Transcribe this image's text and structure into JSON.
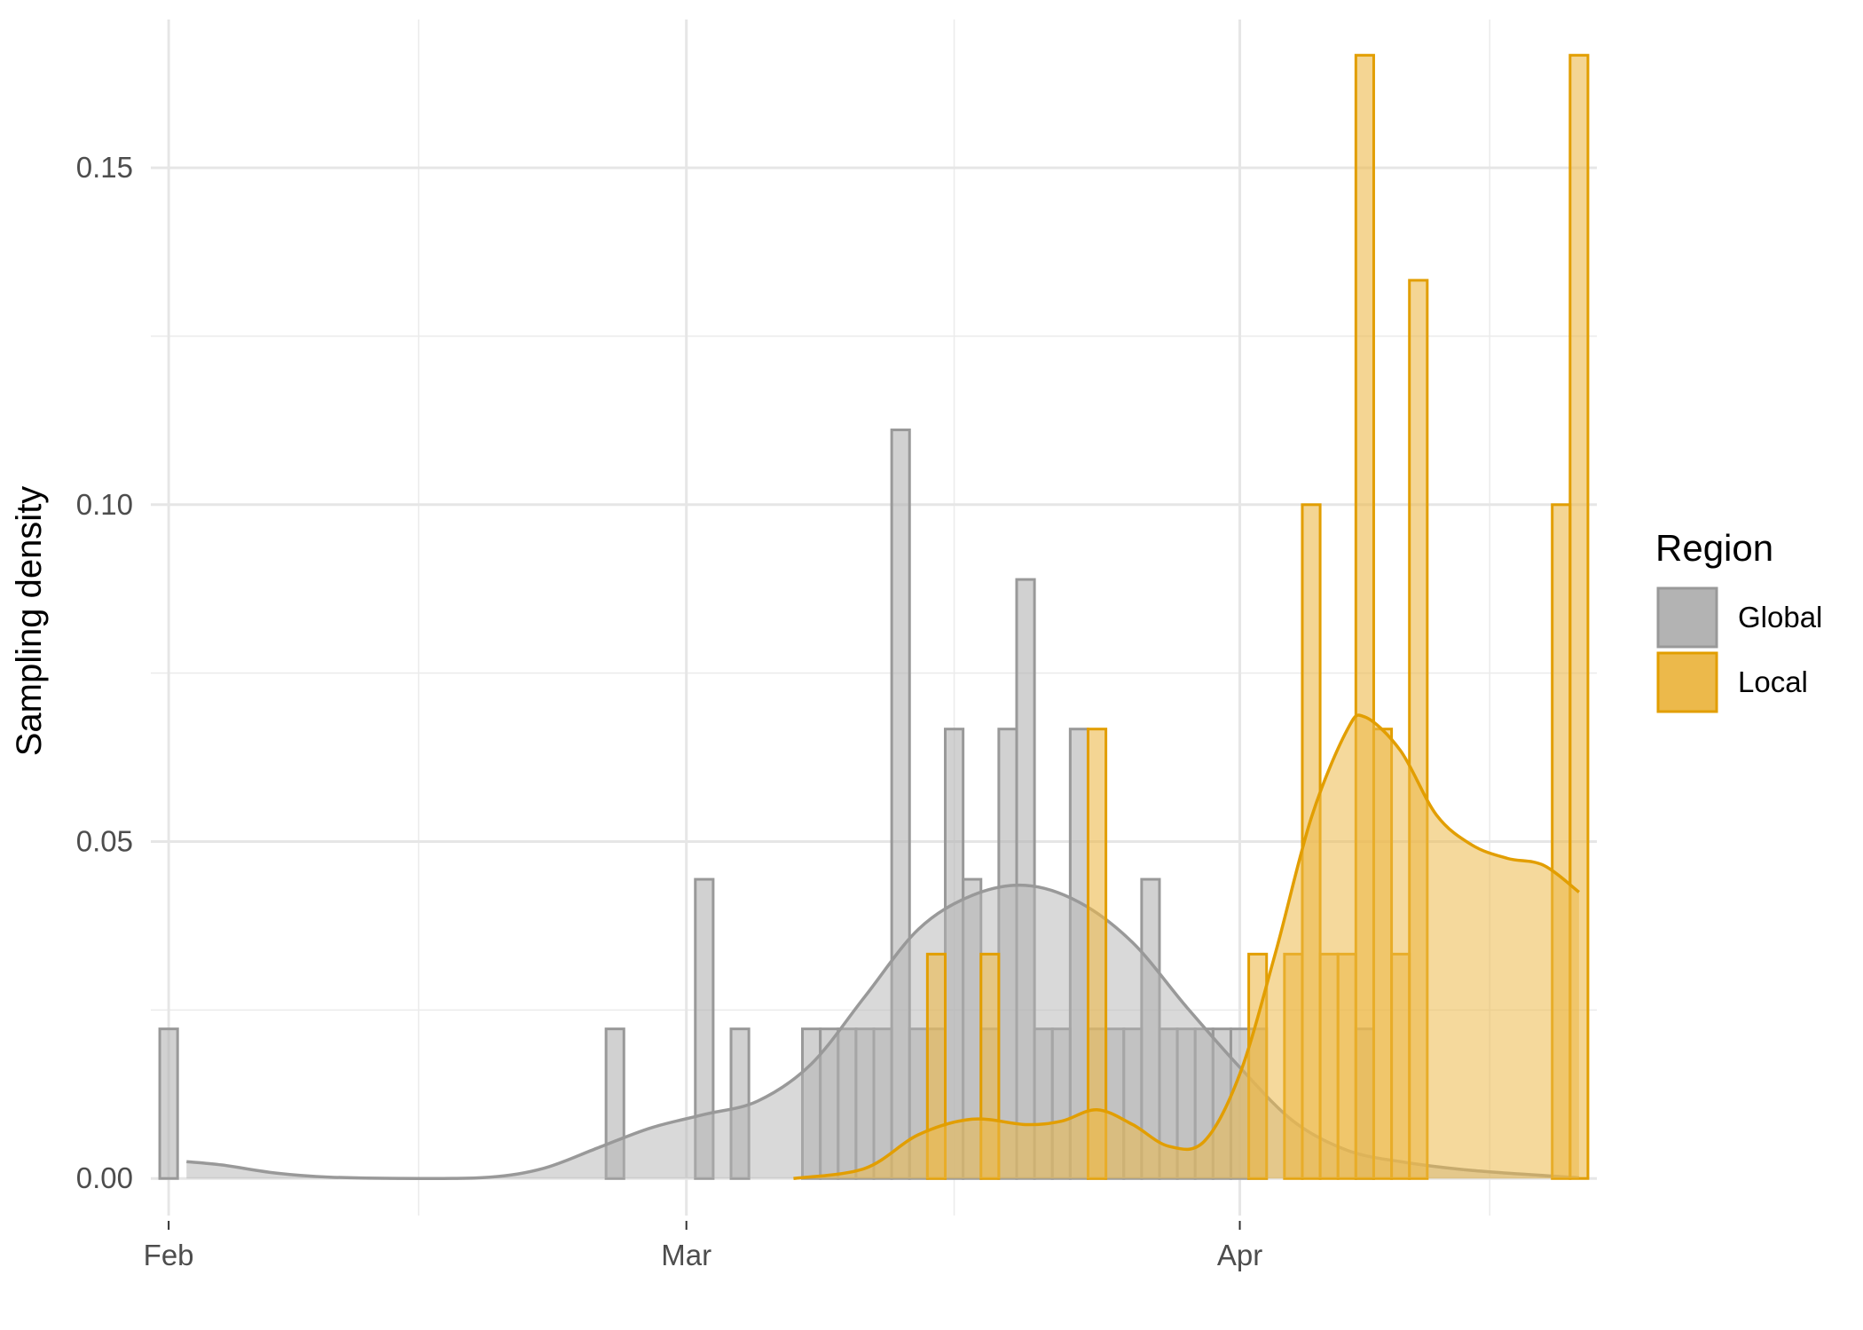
{
  "chart_data": {
    "type": "bar",
    "subtype": "histogram-with-density",
    "title": "",
    "xlabel": "",
    "ylabel": "Sampling density",
    "x_axis": {
      "type": "date",
      "range": [
        "2020-01-31",
        "2020-04-21"
      ],
      "ticks": [
        {
          "date": "2020-02-01",
          "label": "Feb"
        },
        {
          "date": "2020-03-01",
          "label": "Mar"
        },
        {
          "date": "2020-04-01",
          "label": "Apr"
        }
      ],
      "minor_gridlines": [
        "2020-02-15",
        "2020-03-16",
        "2020-04-15"
      ]
    },
    "y_axis": {
      "range": [
        -0.0055,
        0.172
      ],
      "ticks": [
        {
          "value": 0.0,
          "label": "0.00"
        },
        {
          "value": 0.05,
          "label": "0.05"
        },
        {
          "value": 0.1,
          "label": "0.10"
        },
        {
          "value": 0.15,
          "label": "0.15"
        }
      ],
      "minor_gridlines": [
        0.025,
        0.075,
        0.125
      ]
    },
    "grid": true,
    "legend": {
      "title": "Region",
      "position": "right"
    },
    "series": [
      {
        "name": "Global",
        "fill_color": "#b3b3b3",
        "outline_color": "#999999",
        "bars": [
          {
            "date": "2020-02-01",
            "value": 0.0222
          },
          {
            "date": "2020-02-26",
            "value": 0.0222
          },
          {
            "date": "2020-03-02",
            "value": 0.0444
          },
          {
            "date": "2020-03-04",
            "value": 0.0222
          },
          {
            "date": "2020-03-08",
            "value": 0.0222
          },
          {
            "date": "2020-03-09",
            "value": 0.0222
          },
          {
            "date": "2020-03-10",
            "value": 0.0222
          },
          {
            "date": "2020-03-11",
            "value": 0.0222
          },
          {
            "date": "2020-03-12",
            "value": 0.0222
          },
          {
            "date": "2020-03-13",
            "value": 0.1111
          },
          {
            "date": "2020-03-14",
            "value": 0.0222
          },
          {
            "date": "2020-03-15",
            "value": 0.0222
          },
          {
            "date": "2020-03-16",
            "value": 0.0667
          },
          {
            "date": "2020-03-17",
            "value": 0.0444
          },
          {
            "date": "2020-03-18",
            "value": 0.0222
          },
          {
            "date": "2020-03-19",
            "value": 0.0667
          },
          {
            "date": "2020-03-20",
            "value": 0.0889
          },
          {
            "date": "2020-03-21",
            "value": 0.0222
          },
          {
            "date": "2020-03-22",
            "value": 0.0222
          },
          {
            "date": "2020-03-23",
            "value": 0.0667
          },
          {
            "date": "2020-03-24",
            "value": 0.0222
          },
          {
            "date": "2020-03-25",
            "value": 0.0222
          },
          {
            "date": "2020-03-26",
            "value": 0.0222
          },
          {
            "date": "2020-03-27",
            "value": 0.0444
          },
          {
            "date": "2020-03-28",
            "value": 0.0222
          },
          {
            "date": "2020-03-29",
            "value": 0.0222
          },
          {
            "date": "2020-03-30",
            "value": 0.0222
          },
          {
            "date": "2020-03-31",
            "value": 0.0222
          },
          {
            "date": "2020-04-01",
            "value": 0.0222
          },
          {
            "date": "2020-04-02",
            "value": 0.0222
          },
          {
            "date": "2020-04-08",
            "value": 0.0222
          }
        ],
        "density": [
          {
            "date": "2020-02-02",
            "value": 0.0025
          },
          {
            "date": "2020-02-04",
            "value": 0.002
          },
          {
            "date": "2020-02-07",
            "value": 0.0008
          },
          {
            "date": "2020-02-10",
            "value": 0.0002
          },
          {
            "date": "2020-02-15",
            "value": 0.0
          },
          {
            "date": "2020-02-19",
            "value": 0.0002
          },
          {
            "date": "2020-02-22",
            "value": 0.0015
          },
          {
            "date": "2020-02-25",
            "value": 0.0045
          },
          {
            "date": "2020-02-28",
            "value": 0.0075
          },
          {
            "date": "2020-03-02",
            "value": 0.0095
          },
          {
            "date": "2020-03-05",
            "value": 0.0115
          },
          {
            "date": "2020-03-08",
            "value": 0.017
          },
          {
            "date": "2020-03-11",
            "value": 0.027
          },
          {
            "date": "2020-03-14",
            "value": 0.037
          },
          {
            "date": "2020-03-17",
            "value": 0.042
          },
          {
            "date": "2020-03-20",
            "value": 0.0435
          },
          {
            "date": "2020-03-23",
            "value": 0.041
          },
          {
            "date": "2020-03-26",
            "value": 0.035
          },
          {
            "date": "2020-03-29",
            "value": 0.0255
          },
          {
            "date": "2020-04-01",
            "value": 0.0165
          },
          {
            "date": "2020-04-04",
            "value": 0.0085
          },
          {
            "date": "2020-04-07",
            "value": 0.0042
          },
          {
            "date": "2020-04-10",
            "value": 0.0025
          },
          {
            "date": "2020-04-14",
            "value": 0.0012
          },
          {
            "date": "2020-04-20",
            "value": 0.0001
          }
        ]
      },
      {
        "name": "Local",
        "fill_color": "#ecb94b",
        "outline_color": "#e29e00",
        "bars": [
          {
            "date": "2020-03-15",
            "value": 0.0333
          },
          {
            "date": "2020-03-18",
            "value": 0.0333
          },
          {
            "date": "2020-03-24",
            "value": 0.0667
          },
          {
            "date": "2020-04-02",
            "value": 0.0333
          },
          {
            "date": "2020-04-04",
            "value": 0.0333
          },
          {
            "date": "2020-04-05",
            "value": 0.1
          },
          {
            "date": "2020-04-06",
            "value": 0.0333
          },
          {
            "date": "2020-04-07",
            "value": 0.0333
          },
          {
            "date": "2020-04-08",
            "value": 0.1667
          },
          {
            "date": "2020-04-09",
            "value": 0.0667
          },
          {
            "date": "2020-04-10",
            "value": 0.0333
          },
          {
            "date": "2020-04-11",
            "value": 0.1333
          },
          {
            "date": "2020-04-19",
            "value": 0.1
          },
          {
            "date": "2020-04-20",
            "value": 0.1667
          }
        ],
        "density": [
          {
            "date": "2020-03-07",
            "value": 0.0
          },
          {
            "date": "2020-03-11",
            "value": 0.0015
          },
          {
            "date": "2020-03-14",
            "value": 0.0065
          },
          {
            "date": "2020-03-17",
            "value": 0.0088
          },
          {
            "date": "2020-03-20",
            "value": 0.008
          },
          {
            "date": "2020-03-22",
            "value": 0.0085
          },
          {
            "date": "2020-03-24",
            "value": 0.0102
          },
          {
            "date": "2020-03-26",
            "value": 0.008
          },
          {
            "date": "2020-03-28",
            "value": 0.0048
          },
          {
            "date": "2020-03-30",
            "value": 0.0055
          },
          {
            "date": "2020-04-01",
            "value": 0.0155
          },
          {
            "date": "2020-04-03",
            "value": 0.0335
          },
          {
            "date": "2020-04-05",
            "value": 0.0535
          },
          {
            "date": "2020-04-07",
            "value": 0.0665
          },
          {
            "date": "2020-04-08",
            "value": 0.0685
          },
          {
            "date": "2020-04-10",
            "value": 0.0635
          },
          {
            "date": "2020-04-12",
            "value": 0.054
          },
          {
            "date": "2020-04-14",
            "value": 0.0495
          },
          {
            "date": "2020-04-16",
            "value": 0.0475
          },
          {
            "date": "2020-04-18",
            "value": 0.0465
          },
          {
            "date": "2020-04-20",
            "value": 0.0425
          }
        ]
      }
    ]
  }
}
